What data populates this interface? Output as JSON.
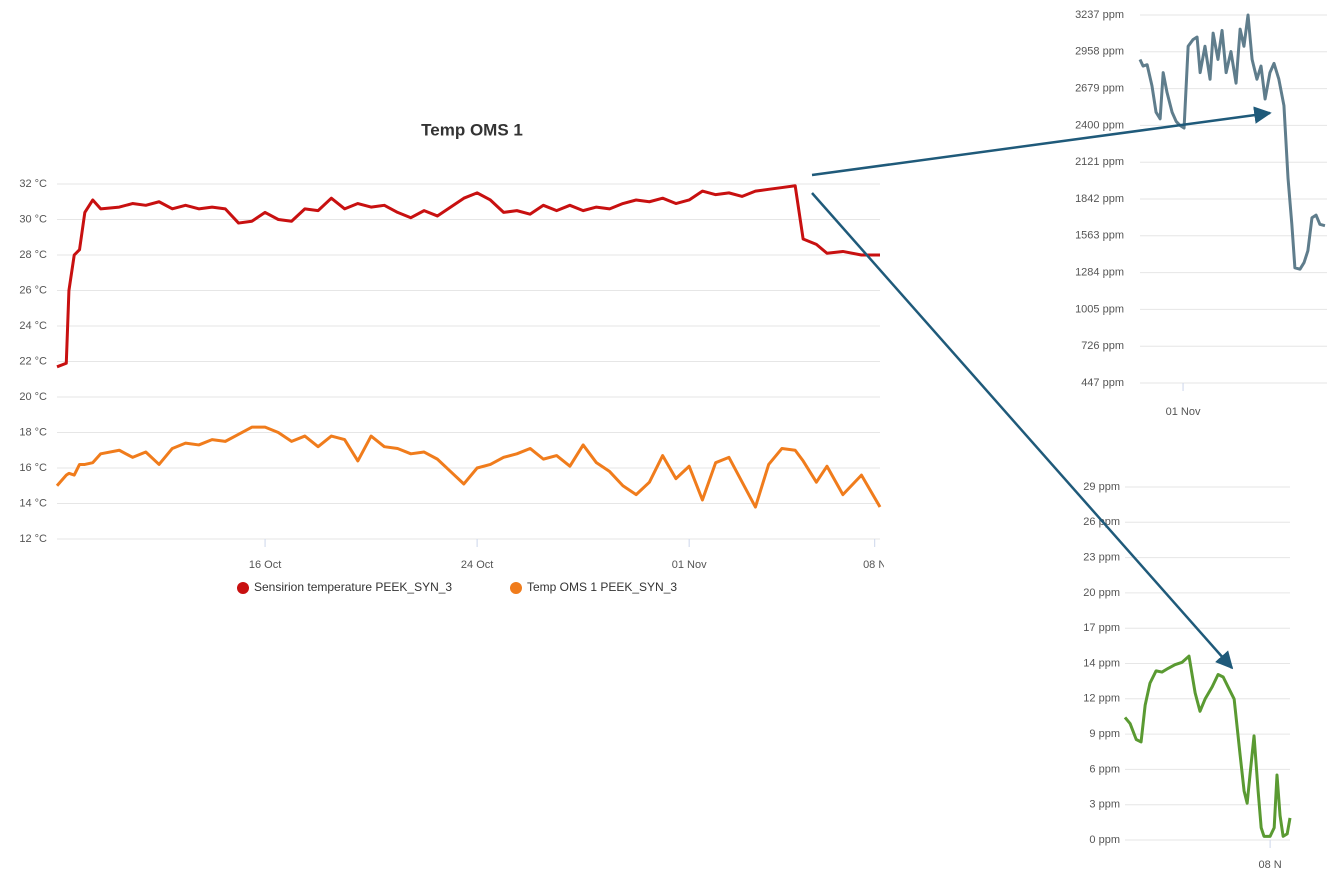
{
  "chart_data": [
    {
      "type": "line",
      "title": "Temp OMS 1",
      "x": [
        8.15,
        8.5,
        8.6,
        8.8,
        9.0,
        9.2,
        9.5,
        9.8,
        10.5,
        11,
        11.5,
        12,
        12.5,
        13,
        13.5,
        14,
        14.5,
        15,
        15.5,
        16,
        16.5,
        17,
        17.5,
        18,
        18.5,
        19,
        19.5,
        20,
        20.5,
        21,
        21.5,
        22,
        22.5,
        23,
        23.5,
        24,
        24.5,
        25,
        25.5,
        26,
        26.5,
        27,
        27.5,
        28,
        28.5,
        29,
        29.5,
        30,
        30.5,
        31,
        31.5,
        32,
        32.5,
        33,
        33.5,
        34,
        34.5,
        35,
        35.5,
        36,
        36.3,
        36.8,
        37.2,
        37.8,
        38.5,
        39.2
      ],
      "series": [
        {
          "name": "Sensirion temperature PEEK_SYN_3",
          "color": "#c81010",
          "values": [
            21.7,
            21.9,
            26,
            28,
            28.3,
            30.4,
            31.1,
            30.6,
            30.7,
            30.9,
            30.8,
            31,
            30.6,
            30.8,
            30.6,
            30.7,
            30.6,
            29.8,
            29.9,
            30.4,
            30.0,
            29.9,
            30.6,
            30.5,
            31.2,
            30.6,
            30.9,
            30.7,
            30.8,
            30.4,
            30.1,
            30.5,
            30.2,
            30.7,
            31.2,
            31.5,
            31.1,
            30.4,
            30.5,
            30.3,
            30.8,
            30.5,
            30.8,
            30.5,
            30.7,
            30.6,
            30.9,
            31.1,
            31.0,
            31.2,
            30.9,
            31.1,
            31.6,
            31.4,
            31.5,
            31.3,
            31.6,
            31.7,
            31.8,
            31.9,
            28.9,
            28.6,
            28.1,
            28.2,
            28.0,
            28.0
          ]
        },
        {
          "name": "Temp OMS 1 PEEK_SYN_3",
          "color": "#f07c1c",
          "values": [
            15.0,
            15.6,
            15.7,
            15.6,
            16.2,
            16.2,
            16.3,
            16.8,
            17.0,
            16.6,
            16.9,
            16.2,
            17.1,
            17.4,
            17.3,
            17.6,
            17.5,
            17.9,
            18.3,
            18.3,
            18.0,
            17.5,
            17.8,
            17.2,
            17.8,
            17.6,
            16.4,
            17.8,
            17.2,
            17.1,
            16.8,
            16.9,
            16.5,
            15.8,
            15.1,
            16.0,
            16.2,
            16.6,
            16.8,
            17.1,
            16.5,
            16.7,
            16.1,
            17.3,
            16.3,
            15.8,
            15.0,
            14.5,
            15.2,
            16.7,
            15.4,
            16.1,
            14.2,
            16.3,
            16.6,
            15.2,
            13.8,
            16.2,
            17.1,
            17.0,
            16.4,
            15.2,
            16.1,
            14.5,
            15.6,
            13.8
          ]
        }
      ],
      "xlim": [
        8.15,
        39.2
      ],
      "xticks": [
        {
          "value": 16,
          "label": "16 Oct"
        },
        {
          "value": 24,
          "label": "24 Oct"
        },
        {
          "value": 32,
          "label": "01 Nov"
        },
        {
          "value": 39,
          "label": "08 N"
        }
      ],
      "ylim": [
        12,
        32
      ],
      "yticks": [
        {
          "value": 12,
          "label": "12 °C"
        },
        {
          "value": 14,
          "label": "14 °C"
        },
        {
          "value": 16,
          "label": "16 °C"
        },
        {
          "value": 18,
          "label": "18 °C"
        },
        {
          "value": 20,
          "label": "20 °C"
        },
        {
          "value": 22,
          "label": "22 °C"
        },
        {
          "value": 24,
          "label": "24 °C"
        },
        {
          "value": 26,
          "label": "26 °C"
        },
        {
          "value": 28,
          "label": "28 °C"
        },
        {
          "value": 30,
          "label": "30 °C"
        },
        {
          "value": 32,
          "label": "32 °C"
        }
      ],
      "grid": true,
      "legend": "bottom"
    },
    {
      "type": "line",
      "x": [
        30.31,
        30.43,
        30.59,
        30.78,
        30.94,
        31.1,
        31.22,
        31.37,
        31.57,
        31.73,
        31.88,
        32.04,
        32.2,
        32.39,
        32.55,
        32.67,
        32.86,
        33.06,
        33.18,
        33.37,
        33.53,
        33.69,
        33.88,
        34.08,
        34.24,
        34.39,
        34.55,
        34.71,
        34.9,
        35.06,
        35.22,
        35.41,
        35.57,
        35.76,
        35.96,
        36.12,
        36.27,
        36.39,
        36.59,
        36.75,
        36.9,
        37.06,
        37.22,
        37.37,
        37.57
      ],
      "series": [
        {
          "color": "#5f7d8c",
          "values": [
            2900,
            2850,
            2860,
            2700,
            2500,
            2450,
            2800,
            2650,
            2500,
            2430,
            2400,
            2380,
            3000,
            3050,
            3070,
            2800,
            3000,
            2750,
            3100,
            2900,
            3120,
            2800,
            2960,
            2720,
            3130,
            3000,
            3237,
            2900,
            2750,
            2850,
            2600,
            2800,
            2870,
            2750,
            2550,
            2000,
            1650,
            1320,
            1310,
            1360,
            1450,
            1700,
            1720,
            1650,
            1640
          ]
        }
      ],
      "xlim": [
        30.31,
        37.65
      ],
      "xticks": [
        {
          "value": 32,
          "label": "01 Nov"
        }
      ],
      "ylim": [
        447,
        3237
      ],
      "yticks": [
        {
          "value": 447,
          "label": "447 ppm"
        },
        {
          "value": 726,
          "label": "726 ppm"
        },
        {
          "value": 1005,
          "label": "1005 ppm"
        },
        {
          "value": 1284,
          "label": "1284 ppm"
        },
        {
          "value": 1563,
          "label": "1563 ppm"
        },
        {
          "value": 1842,
          "label": "1842 ppm"
        },
        {
          "value": 2121,
          "label": "2121 ppm"
        },
        {
          "value": 2400,
          "label": "2400 ppm"
        },
        {
          "value": 2679,
          "label": "2679 ppm"
        },
        {
          "value": 2958,
          "label": "2958 ppm"
        },
        {
          "value": 3237,
          "label": "3237 ppm"
        }
      ],
      "grid": true
    },
    {
      "type": "line",
      "x": [
        33.31,
        33.51,
        33.75,
        33.94,
        34.1,
        34.29,
        34.53,
        34.76,
        35.0,
        35.27,
        35.55,
        35.82,
        36.06,
        36.25,
        36.45,
        36.73,
        36.96,
        37.16,
        37.35,
        37.59,
        37.82,
        37.98,
        38.1,
        38.22,
        38.37,
        38.53,
        38.65,
        38.76,
        39.0,
        39.16,
        39.27,
        39.39,
        39.51,
        39.67,
        39.78
      ],
      "series": [
        {
          "color": "#5a9a32",
          "values": [
            10,
            9.5,
            8.2,
            8.0,
            11,
            12.8,
            13.8,
            13.7,
            14,
            14.3,
            14.5,
            15,
            12,
            10.5,
            11.5,
            12.5,
            13.5,
            13.3,
            12.5,
            11.5,
            7,
            4,
            3,
            5.5,
            8.5,
            4,
            1,
            0.3,
            0.3,
            1,
            5.3,
            2,
            0.3,
            0.5,
            1.8
          ]
        }
      ],
      "xlim": [
        33.31,
        39.78
      ],
      "xticks": [
        {
          "value": 39,
          "label": "08 N"
        }
      ],
      "ylim": [
        0,
        28.8
      ],
      "yticks": [
        {
          "value": 0,
          "label": "0 ppm"
        },
        {
          "value": 2.88,
          "label": "3 ppm"
        },
        {
          "value": 5.76,
          "label": "6 ppm"
        },
        {
          "value": 8.64,
          "label": "9 ppm"
        },
        {
          "value": 11.52,
          "label": "12 ppm"
        },
        {
          "value": 14.4,
          "label": "14 ppm"
        },
        {
          "value": 17.28,
          "label": "17 ppm"
        },
        {
          "value": 20.16,
          "label": "20 ppm"
        },
        {
          "value": 23.04,
          "label": "23 ppm"
        },
        {
          "value": 25.92,
          "label": "26 ppm"
        },
        {
          "value": 28.8,
          "label": "29 ppm"
        }
      ],
      "grid": true
    }
  ]
}
